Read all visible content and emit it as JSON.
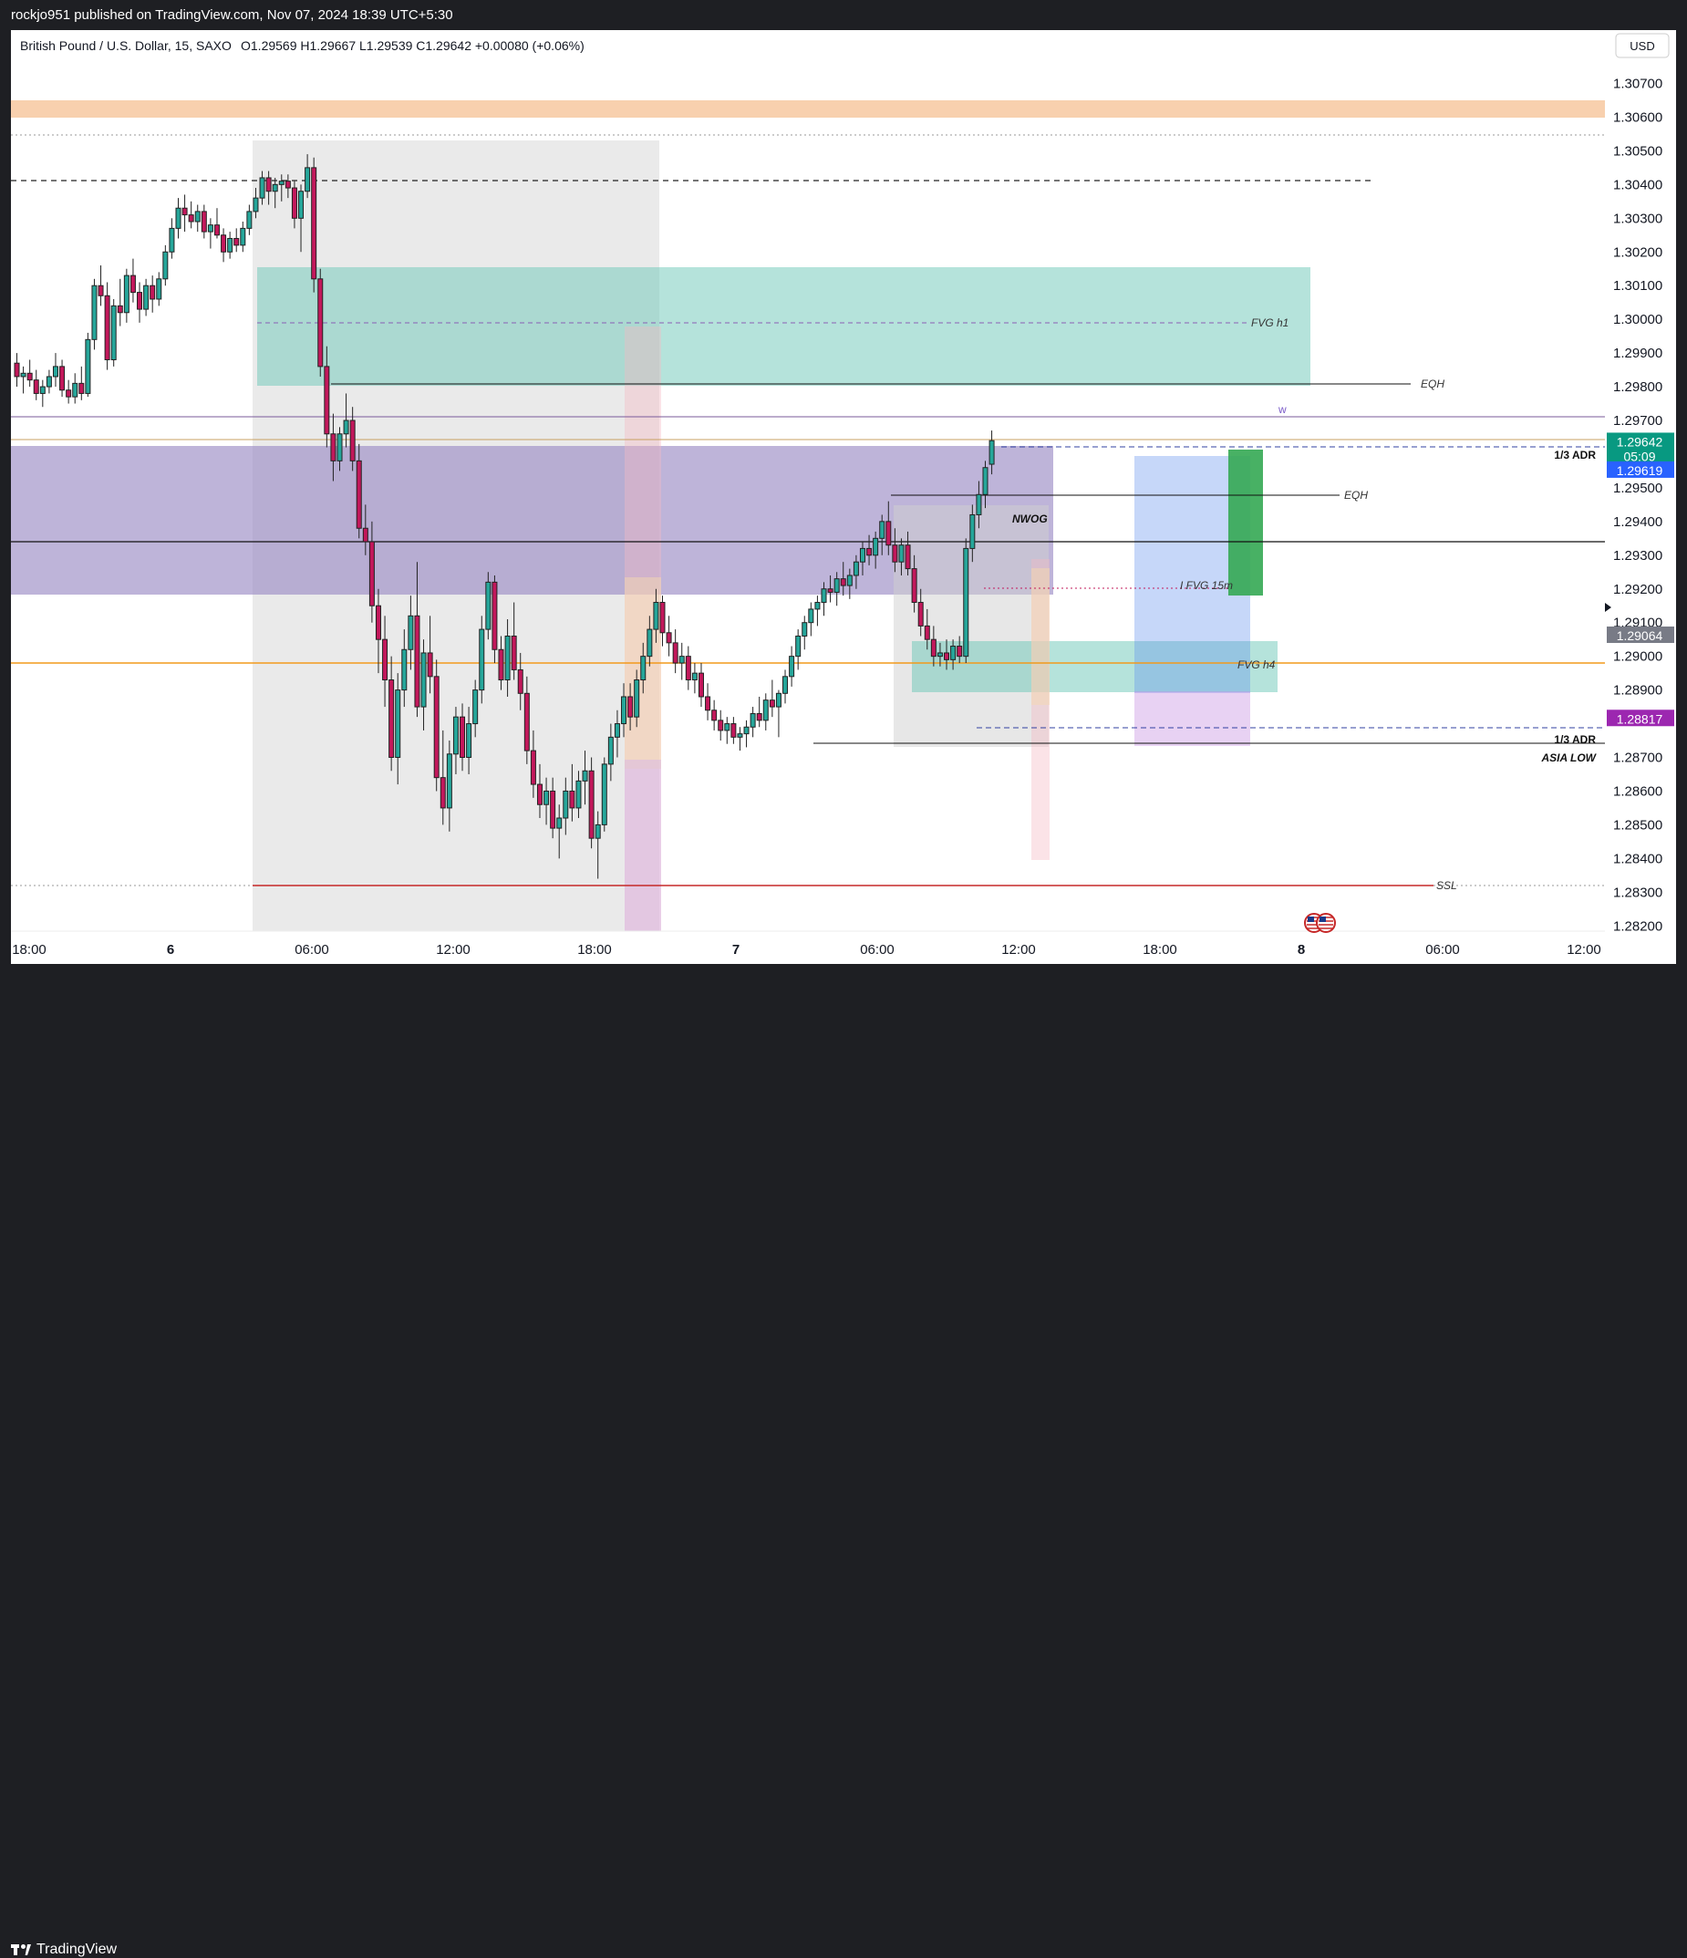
{
  "header": {
    "published": "rockjo951 published on TradingView.com, Nov 07, 2024 18:39 UTC+5:30",
    "currency": "USD"
  },
  "footer": {
    "brand": "TradingView"
  },
  "colors": {
    "bull": "#26a69a",
    "bear": "#c2185b",
    "ob_purple": "#9b8cc4",
    "fvg_teal": "#6cc7b7",
    "orange_zone": "#f7c8a0",
    "green_box": "#34a853",
    "blue_box": "#5b8def"
  },
  "chart_data": {
    "type": "candlestick",
    "symbol": "British Pound / U.S. Dollar",
    "timeframe": "15",
    "exchange": "SAXO",
    "ohlc": {
      "open_label": "O",
      "open": "1.29569",
      "high_label": "H",
      "high": "1.29667",
      "low_label": "L",
      "low": "1.29539",
      "close_label": "C",
      "close": "1.29642",
      "change": "+0.00080",
      "change_pct": "(+0.06%)"
    },
    "ylim": [
      1.282,
      1.308
    ],
    "y_ticks": [
      "1.30700",
      "1.30600",
      "1.30500",
      "1.30400",
      "1.30300",
      "1.30200",
      "1.30100",
      "1.30000",
      "1.29900",
      "1.29800",
      "1.29700",
      "1.29500",
      "1.29400",
      "1.29300",
      "1.29200",
      "1.29100",
      "1.29000",
      "1.28900",
      "1.28700",
      "1.28600",
      "1.28500",
      "1.28400",
      "1.28300",
      "1.28200"
    ],
    "x_ticks": [
      "18:00",
      "6",
      "06:00",
      "12:00",
      "18:00",
      "7",
      "06:00",
      "12:00",
      "18:00",
      "8",
      "06:00",
      "12:00"
    ],
    "price_labels": {
      "last_price": "1.29642",
      "countdown": "05:09",
      "blue_price": "1.29619",
      "gray_price": "1.29064",
      "purple_price": "1.28817"
    },
    "annotations": [
      "FVG h1",
      "EQH",
      "w",
      "1/3 ADR",
      "EQH",
      "NWOG",
      "I FVG 15m",
      "FVG h4",
      "1/3 ADR",
      "ASIA LOW",
      "SSL"
    ],
    "series": [
      {
        "values": [
          [
            1.2987,
            1.299,
            1.298,
            1.2983
          ],
          [
            1.2983,
            1.2986,
            1.2978,
            1.2984
          ],
          [
            1.2984,
            1.2988,
            1.298,
            1.2982
          ],
          [
            1.2982,
            1.2985,
            1.2976,
            1.2978
          ],
          [
            1.2978,
            1.2982,
            1.2974,
            1.298
          ],
          [
            1.298,
            1.2985,
            1.2978,
            1.2983
          ],
          [
            1.2983,
            1.299,
            1.298,
            1.2986
          ],
          [
            1.2986,
            1.2988,
            1.2977,
            1.2979
          ],
          [
            1.2979,
            1.2982,
            1.2975,
            1.2977
          ],
          [
            1.2977,
            1.2984,
            1.2975,
            1.2981
          ],
          [
            1.2981,
            1.2986,
            1.2976,
            1.2978
          ],
          [
            1.2978,
            1.2996,
            1.2977,
            1.2994
          ],
          [
            1.2994,
            1.3012,
            1.2991,
            1.301
          ],
          [
            1.301,
            1.3016,
            1.3004,
            1.3007
          ],
          [
            1.3007,
            1.3011,
            1.2985,
            1.2988
          ],
          [
            1.2988,
            1.3006,
            1.2986,
            1.3004
          ],
          [
            1.3004,
            1.3012,
            1.2998,
            1.3002
          ],
          [
            1.3002,
            1.3015,
            1.2999,
            1.3013
          ],
          [
            1.3013,
            1.3018,
            1.3005,
            1.3008
          ],
          [
            1.3008,
            1.3011,
            1.2999,
            1.3003
          ],
          [
            1.3003,
            1.3012,
            1.3001,
            1.301
          ],
          [
            1.301,
            1.3013,
            1.3002,
            1.3006
          ],
          [
            1.3006,
            1.3014,
            1.3004,
            1.3012
          ],
          [
            1.3012,
            1.3022,
            1.301,
            1.302
          ],
          [
            1.302,
            1.303,
            1.3018,
            1.3027
          ],
          [
            1.3027,
            1.3036,
            1.3024,
            1.3033
          ],
          [
            1.3033,
            1.3037,
            1.3026,
            1.3031
          ],
          [
            1.3031,
            1.3035,
            1.3027,
            1.3029
          ],
          [
            1.3029,
            1.3034,
            1.3026,
            1.3032
          ],
          [
            1.3032,
            1.3034,
            1.3024,
            1.3026
          ],
          [
            1.3026,
            1.303,
            1.3021,
            1.3028
          ],
          [
            1.3028,
            1.3033,
            1.3024,
            1.3025
          ],
          [
            1.3025,
            1.3027,
            1.3017,
            1.302
          ],
          [
            1.302,
            1.3026,
            1.3018,
            1.3024
          ],
          [
            1.3024,
            1.3027,
            1.302,
            1.3022
          ],
          [
            1.3022,
            1.3029,
            1.302,
            1.3027
          ],
          [
            1.3027,
            1.3034,
            1.3025,
            1.3032
          ],
          [
            1.3032,
            1.3039,
            1.303,
            1.3036
          ],
          [
            1.3036,
            1.3044,
            1.3034,
            1.3042
          ],
          [
            1.3042,
            1.3044,
            1.3034,
            1.3038
          ],
          [
            1.3038,
            1.3042,
            1.3033,
            1.304
          ],
          [
            1.304,
            1.3043,
            1.3035,
            1.3041
          ],
          [
            1.3041,
            1.3043,
            1.3036,
            1.3039
          ],
          [
            1.3039,
            1.3041,
            1.3027,
            1.303
          ],
          [
            1.303,
            1.304,
            1.302,
            1.3038
          ],
          [
            1.3038,
            1.3049,
            1.3036,
            1.3045
          ],
          [
            1.3045,
            1.3048,
            1.3008,
            1.3012
          ],
          [
            1.3012,
            1.3015,
            1.2983,
            1.2986
          ],
          [
            1.2986,
            1.2992,
            1.2962,
            1.2966
          ],
          [
            1.2966,
            1.2972,
            1.2952,
            1.2958
          ],
          [
            1.2958,
            1.2968,
            1.2955,
            1.2966
          ],
          [
            1.2966,
            1.2978,
            1.2962,
            1.297
          ],
          [
            1.297,
            1.2974,
            1.2955,
            1.2958
          ],
          [
            1.2958,
            1.2963,
            1.2935,
            1.2938
          ],
          [
            1.2938,
            1.2945,
            1.293,
            1.2934
          ],
          [
            1.2934,
            1.294,
            1.291,
            1.2915
          ],
          [
            1.2915,
            1.292,
            1.2895,
            1.2905
          ],
          [
            1.2905,
            1.2912,
            1.2885,
            1.2893
          ],
          [
            1.2893,
            1.29,
            1.2866,
            1.287
          ],
          [
            1.287,
            1.2895,
            1.2862,
            1.289
          ],
          [
            1.289,
            1.2908,
            1.2885,
            1.2902
          ],
          [
            1.2902,
            1.2918,
            1.2896,
            1.2912
          ],
          [
            1.2912,
            1.2928,
            1.2882,
            1.2885
          ],
          [
            1.2885,
            1.2905,
            1.2878,
            1.2901
          ],
          [
            1.2901,
            1.2912,
            1.2889,
            1.2894
          ],
          [
            1.2894,
            1.2899,
            1.286,
            1.2864
          ],
          [
            1.2864,
            1.2878,
            1.285,
            1.2855
          ],
          [
            1.2855,
            1.2875,
            1.2848,
            1.2871
          ],
          [
            1.2871,
            1.2885,
            1.2865,
            1.2882
          ],
          [
            1.2882,
            1.2886,
            1.2866,
            1.287
          ],
          [
            1.287,
            1.2885,
            1.2865,
            1.288
          ],
          [
            1.288,
            1.2893,
            1.2876,
            1.289
          ],
          [
            1.289,
            1.2912,
            1.2886,
            1.2908
          ],
          [
            1.2908,
            1.2925,
            1.2905,
            1.2922
          ],
          [
            1.2922,
            1.2924,
            1.2898,
            1.2902
          ],
          [
            1.2902,
            1.2906,
            1.289,
            1.2893
          ],
          [
            1.2893,
            1.2911,
            1.2888,
            1.2906
          ],
          [
            1.2906,
            1.2916,
            1.2893,
            1.2896
          ],
          [
            1.2896,
            1.2901,
            1.2884,
            1.2889
          ],
          [
            1.2889,
            1.2894,
            1.2868,
            1.2872
          ],
          [
            1.2872,
            1.2878,
            1.2858,
            1.2862
          ],
          [
            1.2862,
            1.2868,
            1.2852,
            1.2856
          ],
          [
            1.2856,
            1.2864,
            1.285,
            1.286
          ],
          [
            1.286,
            1.2864,
            1.2846,
            1.2849
          ],
          [
            1.2849,
            1.2856,
            1.284,
            1.2852
          ],
          [
            1.2852,
            1.2864,
            1.2847,
            1.286
          ],
          [
            1.286,
            1.2868,
            1.2851,
            1.2855
          ],
          [
            1.2855,
            1.2866,
            1.2852,
            1.2863
          ],
          [
            1.2863,
            1.2872,
            1.2856,
            1.2866
          ],
          [
            1.2866,
            1.287,
            1.2843,
            1.2846
          ],
          [
            1.2846,
            1.2854,
            1.2834,
            1.285
          ],
          [
            1.285,
            1.287,
            1.2848,
            1.2868
          ],
          [
            1.2868,
            1.288,
            1.2863,
            1.2876
          ],
          [
            1.2876,
            1.2884,
            1.287,
            1.288
          ],
          [
            1.288,
            1.2892,
            1.2876,
            1.2888
          ],
          [
            1.2888,
            1.2892,
            1.2878,
            1.2882
          ],
          [
            1.2882,
            1.2896,
            1.2879,
            1.2893
          ],
          [
            1.2893,
            1.2904,
            1.2889,
            1.29
          ],
          [
            1.29,
            1.2912,
            1.2897,
            1.2908
          ],
          [
            1.2908,
            1.292,
            1.2904,
            1.2916
          ],
          [
            1.2916,
            1.2918,
            1.2903,
            1.2907
          ],
          [
            1.2907,
            1.2912,
            1.29,
            1.2904
          ],
          [
            1.2904,
            1.2908,
            1.2895,
            1.2898
          ],
          [
            1.2898,
            1.2904,
            1.2893,
            1.29
          ],
          [
            1.29,
            1.2903,
            1.289,
            1.2893
          ],
          [
            1.2893,
            1.2898,
            1.2889,
            1.2895
          ],
          [
            1.2895,
            1.2898,
            1.2885,
            1.2888
          ],
          [
            1.2888,
            1.2892,
            1.2881,
            1.2884
          ],
          [
            1.2884,
            1.2887,
            1.2878,
            1.2881
          ],
          [
            1.2881,
            1.2884,
            1.2875,
            1.2878
          ],
          [
            1.2878,
            1.2882,
            1.2874,
            1.288
          ],
          [
            1.288,
            1.2882,
            1.2874,
            1.2876
          ],
          [
            1.2876,
            1.2879,
            1.2872,
            1.2877
          ],
          [
            1.2877,
            1.2881,
            1.2873,
            1.2879
          ],
          [
            1.2879,
            1.2885,
            1.2876,
            1.2883
          ],
          [
            1.2883,
            1.2888,
            1.2879,
            1.2881
          ],
          [
            1.2881,
            1.2889,
            1.2878,
            1.2887
          ],
          [
            1.2887,
            1.2893,
            1.2882,
            1.2885
          ],
          [
            1.2885,
            1.289,
            1.2876,
            1.2889
          ],
          [
            1.2889,
            1.2896,
            1.2886,
            1.2894
          ],
          [
            1.2894,
            1.2903,
            1.2891,
            1.29
          ],
          [
            1.29,
            1.2908,
            1.2896,
            1.2906
          ],
          [
            1.2906,
            1.2912,
            1.2902,
            1.291
          ],
          [
            1.291,
            1.2916,
            1.2906,
            1.2914
          ],
          [
            1.2914,
            1.2918,
            1.2909,
            1.2916
          ],
          [
            1.2916,
            1.2922,
            1.2912,
            1.292
          ],
          [
            1.292,
            1.2924,
            1.2916,
            1.2919
          ],
          [
            1.2919,
            1.2925,
            1.2915,
            1.2923
          ],
          [
            1.2923,
            1.2928,
            1.2918,
            1.2921
          ],
          [
            1.2921,
            1.2926,
            1.2917,
            1.2924
          ],
          [
            1.2924,
            1.293,
            1.292,
            1.2928
          ],
          [
            1.2928,
            1.2934,
            1.2924,
            1.2932
          ],
          [
            1.2932,
            1.2936,
            1.2927,
            1.293
          ],
          [
            1.293,
            1.2937,
            1.2926,
            1.2935
          ],
          [
            1.2935,
            1.2942,
            1.293,
            1.294
          ],
          [
            1.294,
            1.2946,
            1.293,
            1.2933
          ],
          [
            1.2933,
            1.2938,
            1.2925,
            1.2928
          ],
          [
            1.2928,
            1.2935,
            1.2924,
            1.2933
          ],
          [
            1.2933,
            1.2937,
            1.2924,
            1.2926
          ],
          [
            1.2926,
            1.293,
            1.2913,
            1.2916
          ],
          [
            1.2916,
            1.292,
            1.2906,
            1.2909
          ],
          [
            1.2909,
            1.2914,
            1.2902,
            1.2905
          ],
          [
            1.2905,
            1.2909,
            1.2897,
            1.29
          ],
          [
            1.29,
            1.2904,
            1.2897,
            1.2901
          ],
          [
            1.2901,
            1.2905,
            1.2896,
            1.2899
          ],
          [
            1.2899,
            1.2905,
            1.2896,
            1.2903
          ],
          [
            1.2903,
            1.2906,
            1.2898,
            1.29
          ],
          [
            1.29,
            1.2935,
            1.2898,
            1.2932
          ],
          [
            1.2932,
            1.2945,
            1.2928,
            1.2942
          ],
          [
            1.2942,
            1.2952,
            1.2938,
            1.2948
          ],
          [
            1.2948,
            1.2958,
            1.2944,
            1.2956
          ],
          [
            1.2957,
            1.2967,
            1.2954,
            1.2964
          ]
        ]
      }
    ]
  }
}
